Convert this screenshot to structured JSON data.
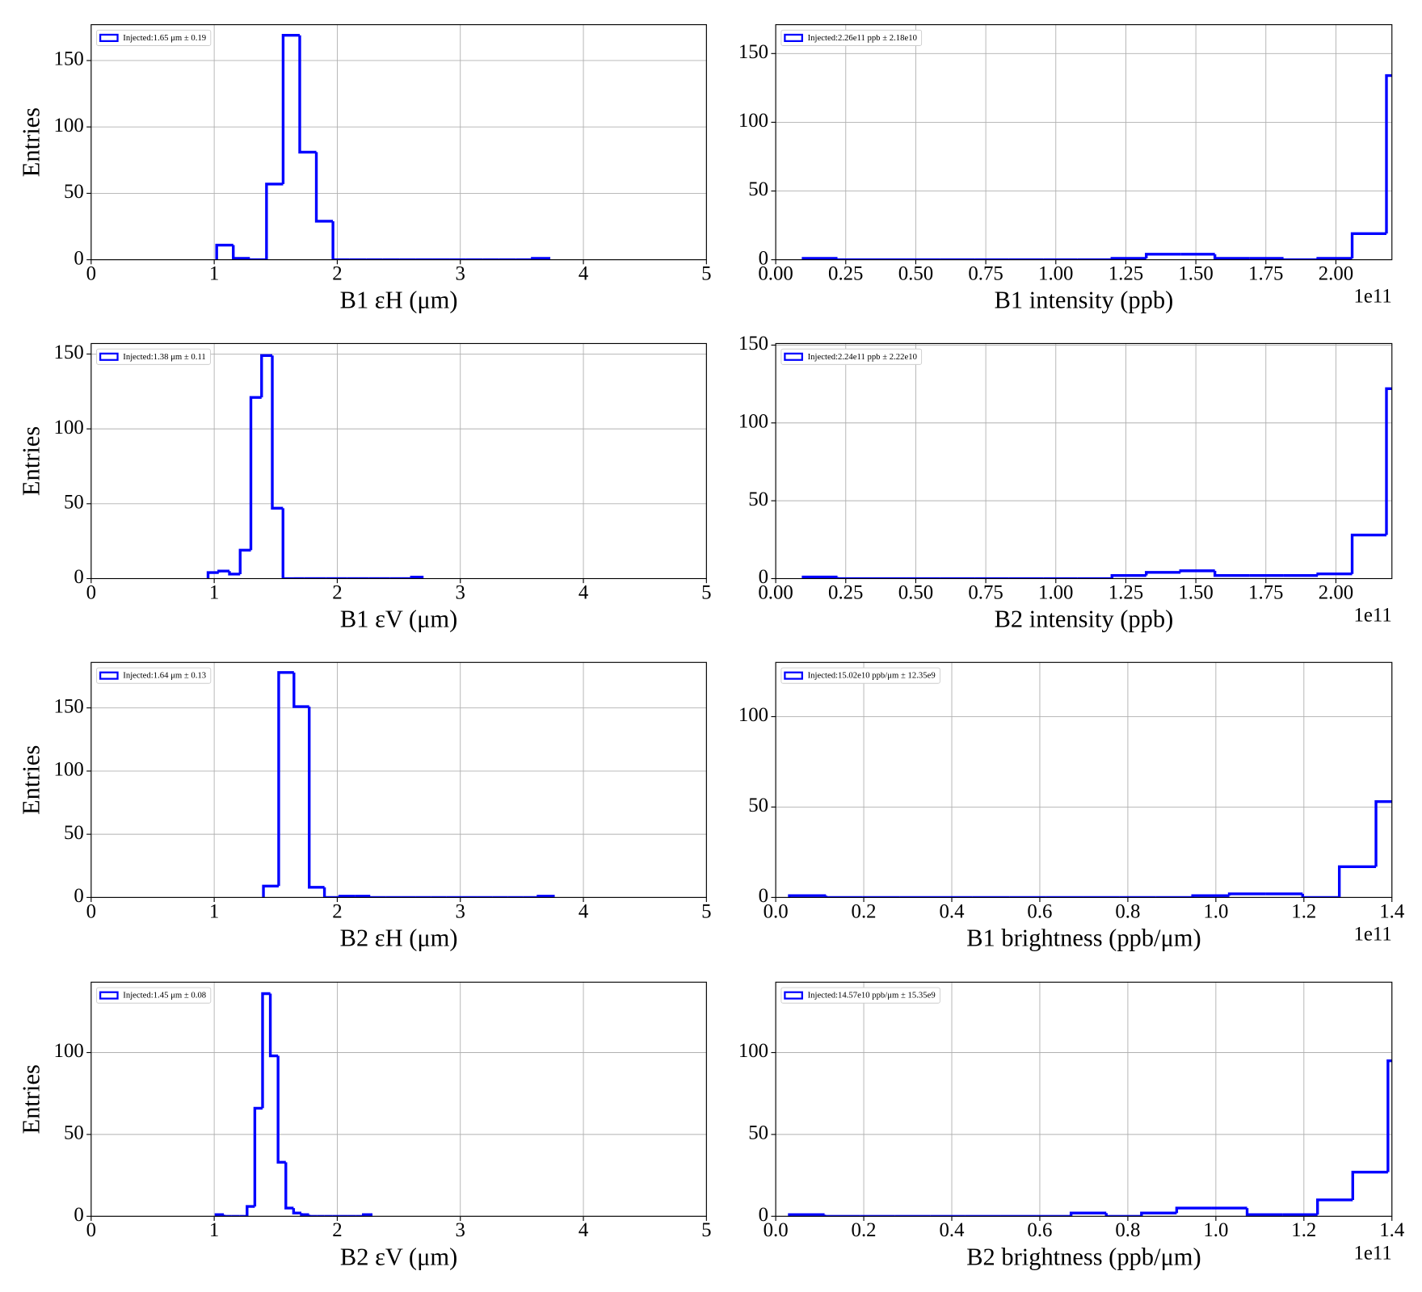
{
  "chart_data": [
    {
      "type": "histogram",
      "xlabel": "B1 εH (μm)",
      "ylabel": "Entries",
      "label": "Injected:1.65 μm ± 0.19",
      "color": "#0000ff",
      "grid": true,
      "legend_loc": "upper left",
      "bins": [
        1.02,
        1.155,
        1.29,
        1.425,
        1.56,
        1.695,
        1.83,
        1.965,
        2.1,
        2.235,
        2.37,
        2.505,
        2.64,
        2.775,
        2.91,
        3.045,
        3.18,
        3.315,
        3.45,
        3.585,
        3.72
      ],
      "counts": [
        11,
        1,
        0,
        57,
        169,
        81,
        29,
        0,
        0,
        0,
        0,
        0,
        0,
        0,
        0,
        0,
        0,
        0,
        0,
        1
      ],
      "xlim": [
        0,
        5
      ],
      "xticks": [
        0,
        1,
        2,
        3,
        4,
        5
      ],
      "ylim": [
        0,
        177
      ],
      "yticks": [
        0,
        50,
        100,
        150
      ]
    },
    {
      "type": "histogram",
      "xlabel": "B1 intensity (ppb)",
      "offset_text": "1e11",
      "label": "Injected:2.26e11 ppb ± 2.18e10",
      "color": "#0000ff",
      "grid": true,
      "legend_loc": "upper left",
      "bins": [
        0.098,
        0.2205,
        0.343,
        0.4655,
        0.588,
        0.7105,
        0.833,
        0.9555,
        1.078,
        1.2005,
        1.323,
        1.4455,
        1.568,
        1.6905,
        1.813,
        1.9355,
        2.058,
        2.1805,
        2.303
      ],
      "counts": [
        1,
        0,
        0,
        0,
        0,
        0,
        0,
        0,
        0,
        1,
        4,
        4,
        1,
        1,
        0,
        1,
        19,
        134
      ],
      "xlim": [
        0,
        2.2
      ],
      "xticks": [
        {
          "value": 0,
          "label": "0.00"
        },
        0.25,
        {
          "value": 0.5,
          "label": "0.50"
        },
        0.75,
        {
          "value": 1,
          "label": "1.00"
        },
        1.25,
        {
          "value": 1.5,
          "label": "1.50"
        },
        1.75,
        {
          "value": 2,
          "label": "2.00"
        }
      ],
      "ylim": [
        0,
        171
      ],
      "yticks": [
        0,
        50,
        100,
        150
      ]
    },
    {
      "type": "histogram",
      "xlabel": "B1 εV (μm)",
      "ylabel": "Entries",
      "label": "Injected:1.38 μm ± 0.11",
      "color": "#0000ff",
      "grid": true,
      "legend_loc": "upper left",
      "bins": [
        0.95,
        1.037,
        1.124,
        1.211,
        1.298,
        1.385,
        1.472,
        1.559,
        1.646,
        1.733,
        1.82,
        1.907,
        1.994,
        2.081,
        2.168,
        2.255,
        2.342,
        2.429,
        2.516,
        2.603,
        2.69
      ],
      "counts": [
        4,
        5,
        3,
        19,
        121,
        149,
        47,
        0,
        0,
        0,
        0,
        0,
        0,
        0,
        0,
        0,
        0,
        0,
        0,
        1
      ],
      "xlim": [
        0,
        5
      ],
      "xticks": [
        0,
        1,
        2,
        3,
        4,
        5
      ],
      "ylim": [
        0,
        157
      ],
      "yticks": [
        0,
        50,
        100,
        150
      ]
    },
    {
      "type": "histogram",
      "xlabel": "B2 intensity (ppb)",
      "offset_text": "1e11",
      "label": "Injected:2.24e11 ppb ± 2.22e10",
      "color": "#0000ff",
      "grid": true,
      "legend_loc": "upper left",
      "bins": [
        0.098,
        0.2205,
        0.343,
        0.4655,
        0.588,
        0.7105,
        0.833,
        0.9555,
        1.078,
        1.2005,
        1.323,
        1.4455,
        1.568,
        1.6905,
        1.813,
        1.9355,
        2.058,
        2.1805,
        2.303
      ],
      "counts": [
        1,
        0,
        0,
        0,
        0,
        0,
        0,
        0,
        0,
        2,
        4,
        5,
        2,
        2,
        2,
        3,
        28,
        122
      ],
      "xlim": [
        0,
        2.2
      ],
      "xticks": [
        {
          "value": 0,
          "label": "0.00"
        },
        0.25,
        {
          "value": 0.5,
          "label": "0.50"
        },
        0.75,
        {
          "value": 1,
          "label": "1.00"
        },
        1.25,
        {
          "value": 1.5,
          "label": "1.50"
        },
        1.75,
        {
          "value": 2,
          "label": "2.00"
        }
      ],
      "ylim": [
        0,
        151
      ],
      "yticks": [
        0,
        50,
        100,
        150
      ]
    },
    {
      "type": "histogram",
      "xlabel": "B2 εH (μm)",
      "ylabel": "Entries",
      "label": "Injected:1.64 μm ± 0.13",
      "color": "#0000ff",
      "grid": true,
      "legend_loc": "upper left",
      "bins": [
        1.4,
        1.524,
        1.648,
        1.772,
        1.896,
        2.02,
        2.144,
        2.268,
        2.392,
        2.516,
        2.64,
        2.764,
        2.888,
        3.012,
        3.136,
        3.26,
        3.384,
        3.508,
        3.632,
        3.756
      ],
      "counts": [
        9,
        178,
        151,
        8,
        0,
        1,
        1,
        0,
        0,
        0,
        0,
        0,
        0,
        0,
        0,
        0,
        0,
        0,
        1
      ],
      "xlim": [
        0,
        5
      ],
      "xticks": [
        0,
        1,
        2,
        3,
        4,
        5
      ],
      "ylim": [
        0,
        186
      ],
      "yticks": [
        0,
        50,
        100,
        150
      ]
    },
    {
      "type": "histogram",
      "xlabel": "B1 brightness (ppb/μm)",
      "offset_text": "1e11",
      "label": "Injected:15.02e10 ppb/μm ± 12.35e9",
      "color": "#0000ff",
      "grid": true,
      "legend_loc": "upper left",
      "bins": [
        0.031,
        0.1143,
        0.1976,
        0.2809,
        0.3642,
        0.4475,
        0.5308,
        0.6141,
        0.6974,
        0.7807,
        0.864,
        0.9473,
        1.0306,
        1.1139,
        1.1972,
        1.2805,
        1.3638,
        1.4471
      ],
      "counts": [
        1,
        0,
        0,
        0,
        0,
        0,
        0,
        0,
        0,
        0,
        0,
        1,
        2,
        2,
        0,
        17,
        53
      ],
      "xlim": [
        0,
        1.4
      ],
      "xticks": [
        {
          "value": 0,
          "label": "0.0"
        },
        0.2,
        0.4,
        0.6,
        0.8,
        {
          "value": 1,
          "label": "1.0"
        },
        1.2,
        1.4
      ],
      "ylim": [
        0,
        130
      ],
      "yticks": [
        0,
        50,
        100
      ]
    },
    {
      "type": "histogram",
      "xlabel": "B2 εV (μm)",
      "ylabel": "Entries",
      "label": "Injected:1.45 μm ± 0.08",
      "color": "#0000ff",
      "grid": true,
      "legend_loc": "upper left",
      "bins": [
        1.015,
        1.078,
        1.141,
        1.204,
        1.267,
        1.33,
        1.393,
        1.456,
        1.519,
        1.582,
        1.645,
        1.708,
        1.771,
        1.834,
        1.897,
        1.96,
        2.023,
        2.086,
        2.149,
        2.212,
        2.275
      ],
      "counts": [
        1,
        0,
        0,
        0,
        6,
        66,
        136,
        98,
        33,
        5,
        2,
        1,
        0,
        0,
        0,
        0,
        0,
        0,
        0,
        1
      ],
      "xlim": [
        0,
        5
      ],
      "xticks": [
        0,
        1,
        2,
        3,
        4,
        5
      ],
      "ylim": [
        0,
        143
      ],
      "yticks": [
        0,
        50,
        100
      ]
    },
    {
      "type": "histogram",
      "xlabel": "B2 brightness (ppb/μm)",
      "offset_text": "1e11",
      "label": "Injected:14.57e10 ppb/μm ± 15.35e9",
      "color": "#0000ff",
      "grid": true,
      "legend_loc": "upper left",
      "bins": [
        0.031,
        0.111,
        0.191,
        0.271,
        0.351,
        0.431,
        0.511,
        0.591,
        0.671,
        0.751,
        0.831,
        0.911,
        0.991,
        1.071,
        1.151,
        1.231,
        1.311,
        1.391,
        1.471
      ],
      "counts": [
        1,
        0,
        0,
        0,
        0,
        0,
        0,
        0,
        2,
        0,
        2,
        5,
        5,
        1,
        1,
        10,
        27,
        95
      ],
      "xlim": [
        0,
        1.4
      ],
      "xticks": [
        {
          "value": 0,
          "label": "0.0"
        },
        0.2,
        0.4,
        0.6,
        0.8,
        {
          "value": 1,
          "label": "1.0"
        },
        1.2,
        1.4
      ],
      "ylim": [
        0,
        143
      ],
      "yticks": [
        0,
        50,
        100
      ]
    }
  ]
}
